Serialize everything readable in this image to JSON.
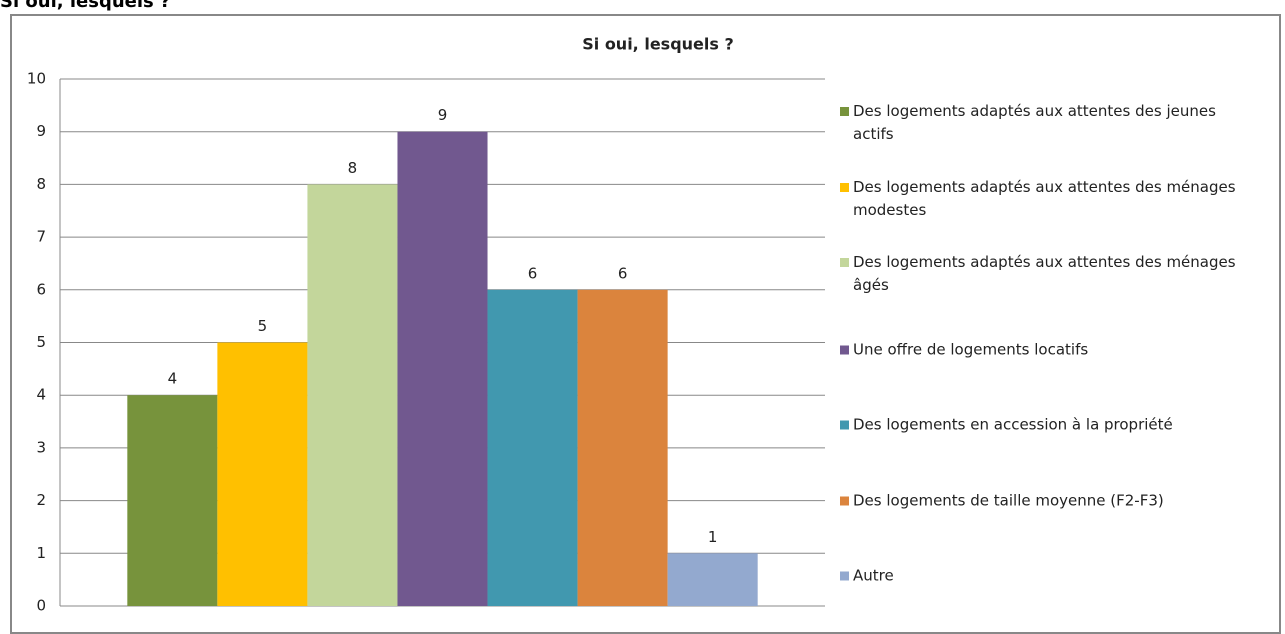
{
  "heading": "Si oui, lesquels ?",
  "chart_data": {
    "type": "bar",
    "title": "Si oui, lesquels ?",
    "categories": [
      null
    ],
    "series": [
      {
        "name": "Des logements adaptés aux attentes des jeunes actifs",
        "color": "#77933c",
        "values": [
          4
        ]
      },
      {
        "name": "Des logements adaptés aux attentes des ménages modestes",
        "color": "#ffc000",
        "values": [
          5
        ]
      },
      {
        "name": "Des logements adaptés aux attentes des ménages âgés",
        "color": "#c3d69b",
        "values": [
          8
        ]
      },
      {
        "name": "Une offre de logements locatifs",
        "color": "#71588f",
        "values": [
          9
        ]
      },
      {
        "name": "Des logements en accession à la propriété",
        "color": "#4198af",
        "values": [
          6
        ]
      },
      {
        "name": "Des logements de taille moyenne (F2-F3)",
        "color": "#db843d",
        "values": [
          6
        ]
      },
      {
        "name": "Autre",
        "color": "#93a9cf",
        "values": [
          1
        ]
      }
    ],
    "ylim": [
      0,
      10
    ],
    "yticks": [
      0,
      1,
      2,
      3,
      4,
      5,
      6,
      7,
      8,
      9,
      10
    ],
    "grid": true,
    "legend": "right"
  }
}
